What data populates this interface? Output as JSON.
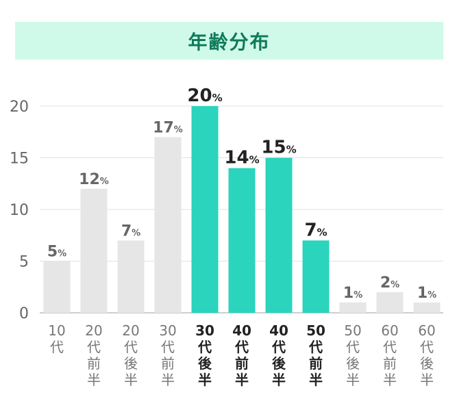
{
  "title": "年齢分布",
  "colors": {
    "banner": "#cff9e8",
    "title": "#0f7a5a",
    "highlight": "#2bd4bc",
    "normal": "#e6e6e6"
  },
  "chart_data": {
    "type": "bar",
    "title": "年齢分布",
    "xlabel": "",
    "ylabel": "",
    "ylim": [
      0,
      20
    ],
    "yticks": [
      0,
      5,
      10,
      15,
      20
    ],
    "grid": true,
    "unit": "%",
    "categories": [
      "10代",
      "20代前半",
      "20代後半",
      "30代前半",
      "30代後半",
      "40代前半",
      "40代後半",
      "50代前半",
      "50代後半",
      "60代前半",
      "60代後半"
    ],
    "values": [
      5,
      12,
      7,
      17,
      20,
      14,
      15,
      7,
      1,
      2,
      1
    ],
    "highlighted": [
      false,
      false,
      false,
      false,
      true,
      true,
      true,
      true,
      false,
      false,
      false
    ]
  }
}
